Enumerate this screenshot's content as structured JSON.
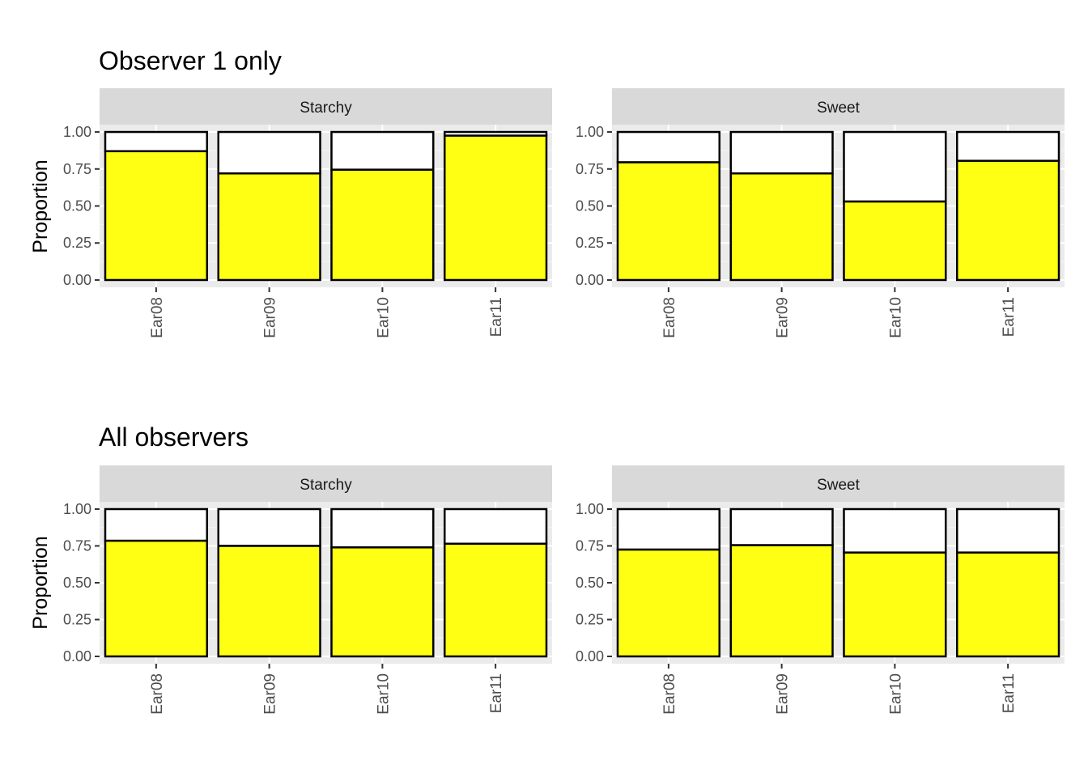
{
  "colors": {
    "panel_background": "#EBEBEB",
    "grid_major": "#FFFFFF",
    "strip_background": "#D9D9D9",
    "bar_fill": "#FFFF14",
    "bar_remainder": "#FFFFFF",
    "bar_outline": "#000000",
    "axis_text": "#4D4D4D"
  },
  "rows": [
    {
      "title": "Observer 1 only",
      "ylabel": "Proportion"
    },
    {
      "title": "All observers",
      "ylabel": "Proportion"
    }
  ],
  "chart_data": [
    {
      "type": "bar",
      "stacked": true,
      "title": "Observer 1 only",
      "facet": "Starchy",
      "xlabel": "",
      "ylabel": "Proportion",
      "categories": [
        "Ear08",
        "Ear09",
        "Ear10",
        "Ear11"
      ],
      "values": [
        0.87,
        0.72,
        0.745,
        0.975
      ],
      "yticks": [
        "0.00",
        "0.25",
        "0.50",
        "0.75",
        "1.00"
      ],
      "ylim": [
        0,
        1.25
      ],
      "grid": true
    },
    {
      "type": "bar",
      "stacked": true,
      "title": "Observer 1 only",
      "facet": "Sweet",
      "xlabel": "",
      "ylabel": "",
      "categories": [
        "Ear08",
        "Ear09",
        "Ear10",
        "Ear11"
      ],
      "values": [
        0.795,
        0.72,
        0.53,
        0.805
      ],
      "yticks": [
        "0.00",
        "0.25",
        "0.50",
        "0.75",
        "1.00"
      ],
      "ylim": [
        0,
        1.25
      ],
      "grid": true
    },
    {
      "type": "bar",
      "stacked": true,
      "title": "All observers",
      "facet": "Starchy",
      "xlabel": "",
      "ylabel": "Proportion",
      "categories": [
        "Ear08",
        "Ear09",
        "Ear10",
        "Ear11"
      ],
      "values": [
        0.785,
        0.75,
        0.74,
        0.765
      ],
      "yticks": [
        "0.00",
        "0.25",
        "0.50",
        "0.75",
        "1.00"
      ],
      "ylim": [
        0,
        1.25
      ],
      "grid": true
    },
    {
      "type": "bar",
      "stacked": true,
      "title": "All observers",
      "facet": "Sweet",
      "xlabel": "",
      "ylabel": "",
      "categories": [
        "Ear08",
        "Ear09",
        "Ear10",
        "Ear11"
      ],
      "values": [
        0.725,
        0.755,
        0.705,
        0.705
      ],
      "yticks": [
        "0.00",
        "0.25",
        "0.50",
        "0.75",
        "1.00"
      ],
      "ylim": [
        0,
        1.25
      ],
      "grid": true
    }
  ]
}
